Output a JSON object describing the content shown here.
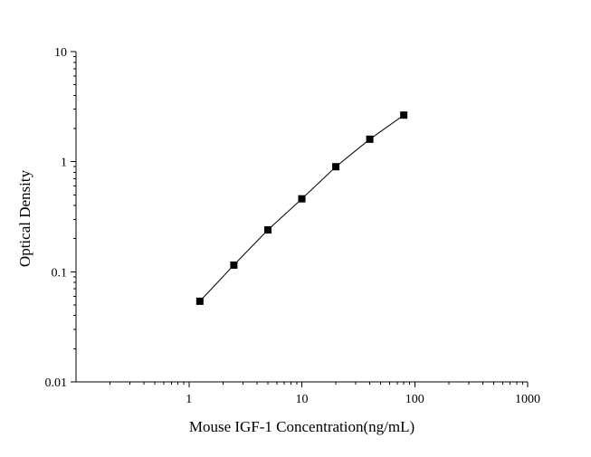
{
  "chart_data": {
    "type": "line",
    "xlabel": "Mouse IGF-1 Concentration(ng/mL)",
    "ylabel": "Optical Density",
    "x_scale": "log",
    "y_scale": "log",
    "xlim": [
      0.1,
      1000
    ],
    "ylim": [
      0.01,
      10
    ],
    "x_tick_labels": [
      "1",
      "10",
      "100",
      "1000"
    ],
    "y_tick_labels": [
      "0.01",
      "0.1",
      "1",
      "10"
    ],
    "grid": false,
    "marker": "square",
    "series_color": "#000000",
    "series": [
      {
        "x": [
          1.25,
          2.5,
          5,
          10,
          20,
          40,
          80
        ],
        "y": [
          0.054,
          0.115,
          0.24,
          0.46,
          0.9,
          1.6,
          2.65
        ]
      }
    ]
  }
}
